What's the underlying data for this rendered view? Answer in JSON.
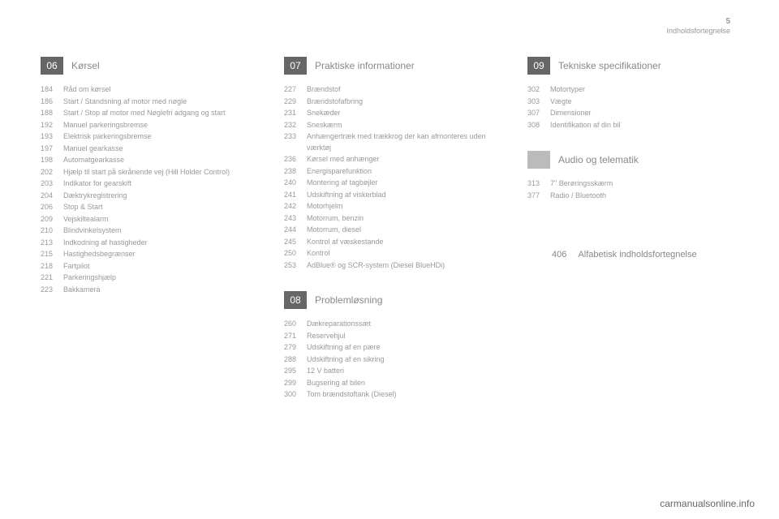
{
  "header": {
    "page_number": "5",
    "title": "Indholdsfortegnelse"
  },
  "columns": [
    {
      "sections": [
        {
          "chapter": "06",
          "title": "Kørsel",
          "items": [
            {
              "page": "184",
              "label": "Råd om kørsel"
            },
            {
              "page": "186",
              "label": "Start / Standsning af motor med nøgle"
            },
            {
              "page": "188",
              "label": "Start / Stop af motor med Nøglefri adgang og start"
            },
            {
              "page": "192",
              "label": "Manuel parkeringsbremse"
            },
            {
              "page": "193",
              "label": "Elektrisk parkeringsbremse"
            },
            {
              "page": "197",
              "label": "Manuel gearkasse"
            },
            {
              "page": "198",
              "label": "Automatgearkasse"
            },
            {
              "page": "202",
              "label": "Hjælp til start på skrånende vej (Hill Holder Control)"
            },
            {
              "page": "203",
              "label": "Indikator for gearskift"
            },
            {
              "page": "204",
              "label": "Dæktrykregistrering"
            },
            {
              "page": "206",
              "label": "Stop & Start"
            },
            {
              "page": "209",
              "label": "Vejskiltealarm"
            },
            {
              "page": "210",
              "label": "Blindvinkelsystem"
            },
            {
              "page": "213",
              "label": "Indkodning af hastigheder"
            },
            {
              "page": "215",
              "label": "Hastighedsbegrænser"
            },
            {
              "page": "218",
              "label": "Fartpilot"
            },
            {
              "page": "221",
              "label": "Parkeringshjælp"
            },
            {
              "page": "223",
              "label": "Bakkamera"
            }
          ]
        }
      ]
    },
    {
      "sections": [
        {
          "chapter": "07",
          "title": "Praktiske informationer",
          "items": [
            {
              "page": "227",
              "label": "Brændstof"
            },
            {
              "page": "229",
              "label": "Brændstofafbring"
            },
            {
              "page": "231",
              "label": "Snekæder"
            },
            {
              "page": "232",
              "label": "Sneskærm"
            },
            {
              "page": "233",
              "label": "Anhængertræk med trækkrog der kan afmonteres uden værktøj"
            },
            {
              "page": "236",
              "label": "Kørsel med anhænger"
            },
            {
              "page": "238",
              "label": "Energisparefunktion"
            },
            {
              "page": "240",
              "label": "Montering af tagbøjler"
            },
            {
              "page": "241",
              "label": "Udskiftning af viskerblad"
            },
            {
              "page": "242",
              "label": "Motorhjelm"
            },
            {
              "page": "243",
              "label": "Motorrum, benzin"
            },
            {
              "page": "244",
              "label": "Motorrum, diesel"
            },
            {
              "page": "245",
              "label": "Kontrol af væskestande"
            },
            {
              "page": "250",
              "label": "Kontrol"
            },
            {
              "page": "253",
              "label": "AdBlue® og SCR-system (Diesel BlueHDi)"
            }
          ]
        },
        {
          "chapter": "08",
          "title": "Problemløsning",
          "items": [
            {
              "page": "260",
              "label": "Dækreparationssæt"
            },
            {
              "page": "271",
              "label": "Reservehjul"
            },
            {
              "page": "279",
              "label": "Udskiftning af en pære"
            },
            {
              "page": "288",
              "label": "Udskiftning af en sikring"
            },
            {
              "page": "295",
              "label": "12 V batteri"
            },
            {
              "page": "299",
              "label": "Bugsering af bilen"
            },
            {
              "page": "300",
              "label": "Tom brændstoftank (Diesel)"
            }
          ]
        }
      ]
    },
    {
      "sections": [
        {
          "chapter": "09",
          "title": "Tekniske specifikationer",
          "items": [
            {
              "page": "302",
              "label": "Motortyper"
            },
            {
              "page": "303",
              "label": "Vægte"
            },
            {
              "page": "307",
              "label": "Dimensioner"
            },
            {
              "page": "308",
              "label": "Identifikation af din bil"
            }
          ]
        },
        {
          "chapter": "",
          "ghost": true,
          "title": "Audio og telematik",
          "items": [
            {
              "page": "313",
              "label": "7\" Berøringsskærm"
            },
            {
              "page": "377",
              "label": "Radio / Bluetooth"
            }
          ]
        }
      ],
      "extra": {
        "page": "406",
        "label": "Alfabetisk indholdsfortegnelse"
      }
    }
  ],
  "watermark": "carmanualsonline.info"
}
